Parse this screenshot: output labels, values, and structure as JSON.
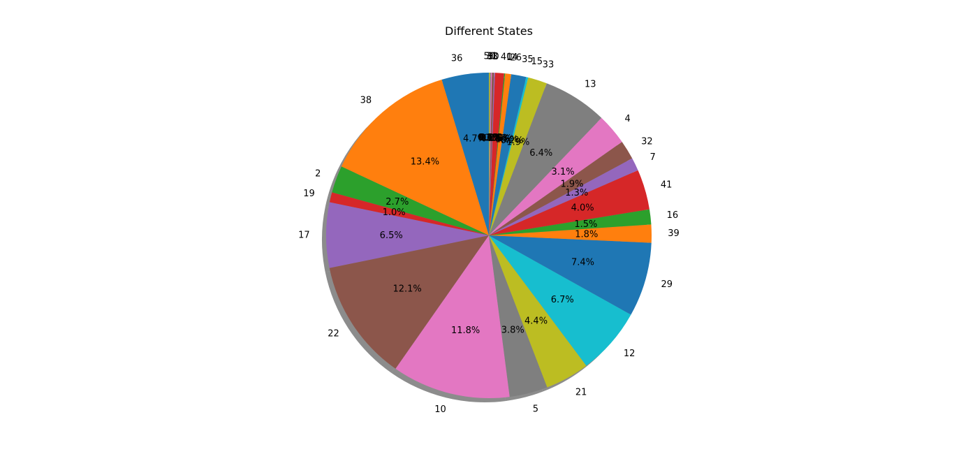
{
  "chart_data": {
    "type": "pie",
    "title": "Different States",
    "shadow": true,
    "start_angle_deg": 90,
    "direction": "clockwise",
    "slices": [
      {
        "label": "36",
        "value": 4.7,
        "pct_label": "4.7%",
        "color": "#1f77b4"
      },
      {
        "label": "38",
        "value": 13.4,
        "pct_label": "13.4%",
        "color": "#ff7f0e"
      },
      {
        "label": "2",
        "value": 2.7,
        "pct_label": "2.7%",
        "color": "#2ca02c"
      },
      {
        "label": "19",
        "value": 1.0,
        "pct_label": "1.0%",
        "color": "#d62728"
      },
      {
        "label": "17",
        "value": 6.5,
        "pct_label": "6.5%",
        "color": "#9467bd"
      },
      {
        "label": "22",
        "value": 12.1,
        "pct_label": "12.1%",
        "color": "#8c564b"
      },
      {
        "label": "10",
        "value": 11.8,
        "pct_label": "11.8%",
        "color": "#e377c2"
      },
      {
        "label": "5",
        "value": 3.8,
        "pct_label": "3.8%",
        "color": "#7f7f7f"
      },
      {
        "label": "21",
        "value": 4.4,
        "pct_label": "4.4%",
        "color": "#bcbd22"
      },
      {
        "label": "12",
        "value": 6.7,
        "pct_label": "6.7%",
        "color": "#17becf"
      },
      {
        "label": "29",
        "value": 7.4,
        "pct_label": "7.4%",
        "color": "#1f77b4"
      },
      {
        "label": "39",
        "value": 1.8,
        "pct_label": "1.8%",
        "color": "#ff7f0e"
      },
      {
        "label": "16",
        "value": 1.5,
        "pct_label": "1.5%",
        "color": "#2ca02c"
      },
      {
        "label": "41",
        "value": 4.0,
        "pct_label": "4.0%",
        "color": "#d62728"
      },
      {
        "label": "7",
        "value": 1.3,
        "pct_label": "1.3%",
        "color": "#9467bd"
      },
      {
        "label": "32",
        "value": 1.9,
        "pct_label": "1.9%",
        "color": "#8c564b"
      },
      {
        "label": "4",
        "value": 3.1,
        "pct_label": "3.1%",
        "color": "#e377c2"
      },
      {
        "label": "13",
        "value": 6.4,
        "pct_label": "6.4%",
        "color": "#7f7f7f"
      },
      {
        "label": "33",
        "value": 1.9,
        "pct_label": "1.9%",
        "color": "#bcbd22"
      },
      {
        "label": "15",
        "value": 0.2,
        "pct_label": "0.2%",
        "color": "#17becf"
      },
      {
        "label": "35",
        "value": 1.5,
        "pct_label": "1.5%",
        "color": "#1f77b4"
      },
      {
        "label": "26",
        "value": 0.6,
        "pct_label": "0.6%",
        "color": "#ff7f0e"
      },
      {
        "label": "14",
        "value": 0.1,
        "pct_label": "0.1%",
        "color": "#2ca02c"
      },
      {
        "label": "40",
        "value": 0.9,
        "pct_label": "0.9%",
        "color": "#d62728"
      },
      {
        "label": "3",
        "value": 0.1,
        "pct_label": "0.1%",
        "color": "#9467bd"
      },
      {
        "label": "30",
        "value": 0.2,
        "pct_label": "0.2%",
        "color": "#8c564b"
      },
      {
        "label": "31",
        "value": 0.1,
        "pct_label": "0.1%",
        "color": "#e377c2"
      },
      {
        "label": "9",
        "value": 0.1,
        "pct_label": "0.1%",
        "color": "#7f7f7f"
      },
      {
        "label": "50",
        "value": 0.1,
        "pct_label": "0.1%",
        "color": "#bcbd22"
      }
    ]
  }
}
